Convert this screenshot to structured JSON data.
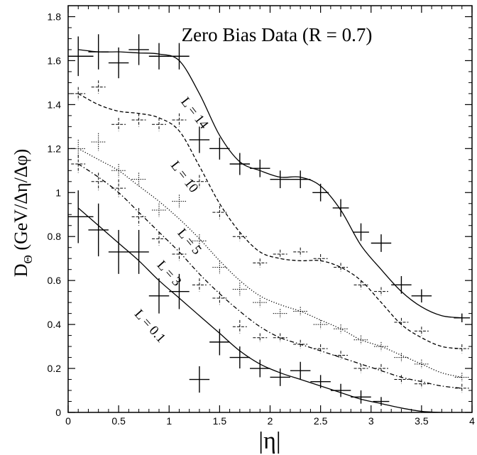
{
  "chart_data": {
    "type": "line",
    "title": "Zero Bias Data (R = 0.7)",
    "xlabel": "|η|",
    "ylabel": "D_Θ (GeV/Δη/Δφ)",
    "ylabel_main": "D",
    "ylabel_sub": "Θ",
    "ylabel_rest": " (GeV/Δη/Δφ)",
    "xlim": [
      0,
      4
    ],
    "ylim": [
      0,
      1.85
    ],
    "xticks": [
      0,
      0.5,
      1,
      1.5,
      2,
      2.5,
      3,
      3.5,
      4
    ],
    "xtick_labels": [
      "0",
      "0.5",
      "1",
      "1.5",
      "2",
      "2.5",
      "3",
      "3.5",
      "4"
    ],
    "yticks": [
      0,
      0.2,
      0.4,
      0.6,
      0.8,
      1,
      1.2,
      1.4,
      1.6,
      1.8
    ],
    "ytick_labels": [
      "0",
      "0.2",
      "0.4",
      "0.6",
      "0.8",
      "1",
      "1.2",
      "1.4",
      "1.6",
      "1.8"
    ],
    "grid": false,
    "series": [
      {
        "name": "L = 14",
        "line_style": "solid",
        "curve": [
          [
            0.1,
            1.65
          ],
          [
            0.3,
            1.64
          ],
          [
            0.5,
            1.64
          ],
          [
            0.7,
            1.635
          ],
          [
            0.9,
            1.63
          ],
          [
            1.1,
            1.6
          ],
          [
            1.3,
            1.45
          ],
          [
            1.5,
            1.26
          ],
          [
            1.7,
            1.14
          ],
          [
            1.9,
            1.1
          ],
          [
            2.1,
            1.07
          ],
          [
            2.3,
            1.07
          ],
          [
            2.5,
            1.03
          ],
          [
            2.7,
            0.92
          ],
          [
            2.9,
            0.76
          ],
          [
            3.1,
            0.65
          ],
          [
            3.3,
            0.55
          ],
          [
            3.5,
            0.48
          ],
          [
            3.7,
            0.44
          ],
          [
            3.9,
            0.43
          ]
        ],
        "points": [
          [
            0.1,
            1.62,
            0.15,
            0.09
          ],
          [
            0.3,
            1.64,
            0.1,
            0.08
          ],
          [
            0.5,
            1.59,
            0.1,
            0.07
          ],
          [
            0.7,
            1.65,
            0.1,
            0.07
          ],
          [
            0.9,
            1.62,
            0.1,
            0.06
          ],
          [
            1.1,
            1.62,
            0.1,
            0.06
          ],
          [
            1.3,
            1.24,
            0.1,
            0.06
          ],
          [
            1.5,
            1.2,
            0.1,
            0.05
          ],
          [
            1.7,
            1.13,
            0.1,
            0.05
          ],
          [
            1.9,
            1.11,
            0.1,
            0.04
          ],
          [
            2.1,
            1.06,
            0.1,
            0.04
          ],
          [
            2.3,
            1.06,
            0.1,
            0.04
          ],
          [
            2.5,
            1.0,
            0.08,
            0.04
          ],
          [
            2.7,
            0.93,
            0.08,
            0.04
          ],
          [
            2.9,
            0.82,
            0.08,
            0.04
          ],
          [
            3.1,
            0.77,
            0.1,
            0.04
          ],
          [
            3.3,
            0.58,
            0.1,
            0.04
          ],
          [
            3.5,
            0.53,
            0.1,
            0.03
          ],
          [
            3.9,
            0.43,
            0.08,
            0.02
          ]
        ]
      },
      {
        "name": "L = 10",
        "line_style": "dashed",
        "curve": [
          [
            0.1,
            1.45
          ],
          [
            0.3,
            1.4
          ],
          [
            0.5,
            1.37
          ],
          [
            0.7,
            1.36
          ],
          [
            0.9,
            1.34
          ],
          [
            1.1,
            1.28
          ],
          [
            1.3,
            1.12
          ],
          [
            1.5,
            0.95
          ],
          [
            1.7,
            0.82
          ],
          [
            1.9,
            0.73
          ],
          [
            2.1,
            0.7
          ],
          [
            2.3,
            0.69
          ],
          [
            2.5,
            0.69
          ],
          [
            2.7,
            0.66
          ],
          [
            2.9,
            0.6
          ],
          [
            3.1,
            0.5
          ],
          [
            3.3,
            0.4
          ],
          [
            3.5,
            0.34
          ],
          [
            3.7,
            0.3
          ],
          [
            3.9,
            0.29
          ]
        ],
        "points": [
          [
            0.1,
            1.45,
            0.07,
            0.03
          ],
          [
            0.3,
            1.48,
            0.07,
            0.03
          ],
          [
            0.5,
            1.31,
            0.07,
            0.03
          ],
          [
            0.7,
            1.33,
            0.07,
            0.03
          ],
          [
            0.9,
            1.31,
            0.07,
            0.03
          ],
          [
            1.1,
            1.33,
            0.07,
            0.03
          ],
          [
            1.3,
            1.05,
            0.07,
            0.03
          ],
          [
            1.5,
            0.91,
            0.07,
            0.03
          ],
          [
            1.7,
            0.8,
            0.07,
            0.02
          ],
          [
            1.9,
            0.68,
            0.07,
            0.02
          ],
          [
            2.1,
            0.72,
            0.07,
            0.02
          ],
          [
            2.3,
            0.73,
            0.07,
            0.02
          ],
          [
            2.5,
            0.7,
            0.07,
            0.02
          ],
          [
            2.7,
            0.66,
            0.07,
            0.02
          ],
          [
            2.9,
            0.58,
            0.07,
            0.02
          ],
          [
            3.1,
            0.55,
            0.07,
            0.02
          ],
          [
            3.3,
            0.41,
            0.07,
            0.02
          ],
          [
            3.5,
            0.37,
            0.07,
            0.02
          ],
          [
            3.9,
            0.29,
            0.07,
            0.02
          ]
        ]
      },
      {
        "name": "L = 5",
        "line_style": "dotted",
        "curve": [
          [
            0.1,
            1.2
          ],
          [
            0.3,
            1.15
          ],
          [
            0.5,
            1.1
          ],
          [
            0.7,
            1.03
          ],
          [
            0.9,
            0.96
          ],
          [
            1.1,
            0.88
          ],
          [
            1.3,
            0.79
          ],
          [
            1.5,
            0.69
          ],
          [
            1.7,
            0.6
          ],
          [
            1.9,
            0.53
          ],
          [
            2.1,
            0.49
          ],
          [
            2.3,
            0.46
          ],
          [
            2.5,
            0.42
          ],
          [
            2.7,
            0.38
          ],
          [
            2.9,
            0.33
          ],
          [
            3.1,
            0.3
          ],
          [
            3.3,
            0.26
          ],
          [
            3.5,
            0.22
          ],
          [
            3.7,
            0.18
          ],
          [
            3.9,
            0.16
          ]
        ],
        "points": [
          [
            0.1,
            1.2,
            0.07,
            0.04
          ],
          [
            0.3,
            1.23,
            0.07,
            0.04
          ],
          [
            0.5,
            1.1,
            0.07,
            0.03
          ],
          [
            0.7,
            1.06,
            0.07,
            0.03
          ],
          [
            0.9,
            0.92,
            0.07,
            0.03
          ],
          [
            1.1,
            0.96,
            0.07,
            0.03
          ],
          [
            1.3,
            0.78,
            0.07,
            0.03
          ],
          [
            1.5,
            0.66,
            0.07,
            0.03
          ],
          [
            1.7,
            0.56,
            0.07,
            0.03
          ],
          [
            1.9,
            0.5,
            0.07,
            0.02
          ],
          [
            2.1,
            0.45,
            0.07,
            0.02
          ],
          [
            2.3,
            0.46,
            0.07,
            0.02
          ],
          [
            2.5,
            0.4,
            0.07,
            0.02
          ],
          [
            2.7,
            0.38,
            0.07,
            0.02
          ],
          [
            2.9,
            0.33,
            0.07,
            0.02
          ],
          [
            3.1,
            0.3,
            0.07,
            0.02
          ],
          [
            3.3,
            0.25,
            0.07,
            0.02
          ],
          [
            3.5,
            0.22,
            0.07,
            0.02
          ],
          [
            3.9,
            0.16,
            0.07,
            0.02
          ]
        ]
      },
      {
        "name": "L = 3",
        "line_style": "dashdot",
        "curve": [
          [
            0.1,
            1.13
          ],
          [
            0.3,
            1.07
          ],
          [
            0.5,
            1.0
          ],
          [
            0.7,
            0.91
          ],
          [
            0.9,
            0.82
          ],
          [
            1.1,
            0.73
          ],
          [
            1.3,
            0.63
          ],
          [
            1.5,
            0.54
          ],
          [
            1.7,
            0.46
          ],
          [
            1.9,
            0.39
          ],
          [
            2.1,
            0.34
          ],
          [
            2.3,
            0.31
          ],
          [
            2.5,
            0.28
          ],
          [
            2.7,
            0.25
          ],
          [
            2.9,
            0.22
          ],
          [
            3.1,
            0.19
          ],
          [
            3.3,
            0.16
          ],
          [
            3.5,
            0.14
          ],
          [
            3.7,
            0.12
          ],
          [
            3.9,
            0.11
          ]
        ],
        "points": [
          [
            0.1,
            1.13,
            0.07,
            0.04
          ],
          [
            0.3,
            1.05,
            0.07,
            0.04
          ],
          [
            0.5,
            1.02,
            0.07,
            0.04
          ],
          [
            0.7,
            0.89,
            0.07,
            0.04
          ],
          [
            0.9,
            0.79,
            0.07,
            0.03
          ],
          [
            1.1,
            0.72,
            0.07,
            0.03
          ],
          [
            1.3,
            0.58,
            0.07,
            0.03
          ],
          [
            1.5,
            0.52,
            0.07,
            0.03
          ],
          [
            1.7,
            0.39,
            0.07,
            0.03
          ],
          [
            1.9,
            0.34,
            0.07,
            0.02
          ],
          [
            2.1,
            0.34,
            0.07,
            0.02
          ],
          [
            2.3,
            0.31,
            0.07,
            0.02
          ],
          [
            2.5,
            0.29,
            0.07,
            0.02
          ],
          [
            2.7,
            0.26,
            0.07,
            0.02
          ],
          [
            2.9,
            0.2,
            0.07,
            0.02
          ],
          [
            3.1,
            0.2,
            0.07,
            0.02
          ],
          [
            3.3,
            0.15,
            0.07,
            0.02
          ],
          [
            3.5,
            0.13,
            0.07,
            0.02
          ],
          [
            3.9,
            0.11,
            0.07,
            0.02
          ]
        ]
      },
      {
        "name": "L = 0.1",
        "line_style": "solid",
        "curve": [
          [
            0.1,
            0.93
          ],
          [
            0.3,
            0.85
          ],
          [
            0.5,
            0.77
          ],
          [
            0.7,
            0.69
          ],
          [
            0.9,
            0.6
          ],
          [
            1.1,
            0.52
          ],
          [
            1.3,
            0.44
          ],
          [
            1.5,
            0.36
          ],
          [
            1.7,
            0.28
          ],
          [
            1.9,
            0.22
          ],
          [
            2.1,
            0.18
          ],
          [
            2.3,
            0.15
          ],
          [
            2.5,
            0.12
          ],
          [
            2.7,
            0.09
          ],
          [
            2.9,
            0.06
          ],
          [
            3.1,
            0.04
          ],
          [
            3.3,
            0.02
          ],
          [
            3.5,
            0.005
          ],
          [
            3.7,
            0.0
          ]
        ],
        "points": [
          [
            0.1,
            0.89,
            0.15,
            0.12
          ],
          [
            0.3,
            0.83,
            0.1,
            0.12
          ],
          [
            0.5,
            0.73,
            0.1,
            0.1
          ],
          [
            0.7,
            0.73,
            0.1,
            0.1
          ],
          [
            0.9,
            0.53,
            0.1,
            0.08
          ],
          [
            1.1,
            0.55,
            0.1,
            0.08
          ],
          [
            1.3,
            0.15,
            0.1,
            0.06
          ],
          [
            1.5,
            0.32,
            0.1,
            0.06
          ],
          [
            1.7,
            0.25,
            0.1,
            0.05
          ],
          [
            1.9,
            0.2,
            0.1,
            0.04
          ],
          [
            2.1,
            0.16,
            0.1,
            0.04
          ],
          [
            2.3,
            0.19,
            0.1,
            0.04
          ],
          [
            2.5,
            0.14,
            0.1,
            0.03
          ],
          [
            2.7,
            0.1,
            0.1,
            0.03
          ],
          [
            2.9,
            0.07,
            0.1,
            0.03
          ],
          [
            3.1,
            0.05,
            0.08,
            0.02
          ]
        ]
      }
    ]
  }
}
